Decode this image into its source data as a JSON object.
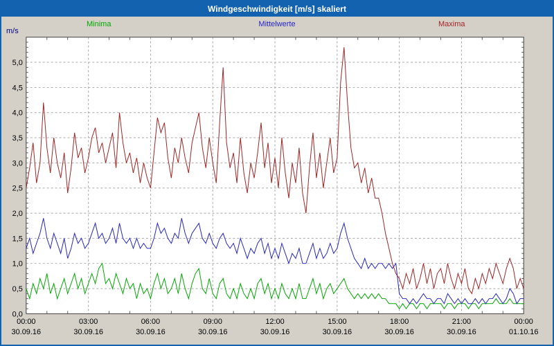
{
  "window": {
    "title": "Windgeschwindigkeit [m/s] skaliert"
  },
  "theme": {
    "titlebar": "#1262b0",
    "background": "#d4d0c8",
    "plot_background": "#ffffff",
    "grid": "#a8a8a8",
    "axis": "#404040",
    "tick": "#606060",
    "title_text": "#ffffff"
  },
  "chart_data": {
    "type": "line",
    "title": "Windgeschwindigkeit [m/s] skaliert",
    "ylabel": "m/s",
    "ylim": [
      0,
      5.5
    ],
    "grid": true,
    "legend_position": "top",
    "y_tick_values": [
      0,
      0.5,
      1.0,
      1.5,
      2.0,
      2.5,
      3.0,
      3.5,
      4.0,
      4.5,
      5.0
    ],
    "y_tick_labels": [
      "0,0",
      "0,5",
      "1,0",
      "1,5",
      "2,0",
      "2,5",
      "3,0",
      "3,5",
      "4,0",
      "4,5",
      "5,0"
    ],
    "x_ticks": [
      {
        "hour": 0,
        "time": "00:00",
        "date": "30.09.16"
      },
      {
        "hour": 3,
        "time": "03:00",
        "date": "30.09.16"
      },
      {
        "hour": 6,
        "time": "06:00",
        "date": "30.09.16"
      },
      {
        "hour": 9,
        "time": "09:00",
        "date": "30.09.16"
      },
      {
        "hour": 12,
        "time": "12:00",
        "date": "30.09.16"
      },
      {
        "hour": 15,
        "time": "15:00",
        "date": "30.09.16"
      },
      {
        "hour": 18,
        "time": "18:00",
        "date": "30.09.16"
      },
      {
        "hour": 21,
        "time": "21:00",
        "date": "30.09.16"
      },
      {
        "hour": 24,
        "time": "00:00",
        "date": "01.10.16"
      }
    ],
    "sample_interval_minutes": 10,
    "series": [
      {
        "name": "Minima",
        "color": "#00a800",
        "values": [
          0.5,
          0.3,
          0.6,
          0.4,
          0.7,
          0.5,
          0.8,
          0.4,
          0.6,
          0.3,
          0.5,
          0.7,
          0.4,
          0.6,
          0.8,
          0.5,
          0.7,
          0.4,
          0.6,
          0.8,
          0.6,
          0.9,
          1.0,
          0.6,
          0.7,
          0.5,
          0.8,
          0.6,
          0.4,
          0.7,
          0.5,
          0.6,
          0.3,
          0.6,
          0.4,
          0.5,
          0.3,
          0.6,
          0.8,
          0.5,
          0.7,
          0.4,
          0.5,
          0.7,
          0.4,
          0.8,
          0.5,
          0.3,
          0.6,
          0.8,
          0.9,
          0.5,
          0.4,
          0.7,
          0.4,
          0.3,
          0.6,
          0.7,
          0.4,
          0.3,
          0.5,
          0.3,
          0.6,
          0.4,
          0.3,
          0.5,
          0.3,
          0.6,
          0.7,
          0.4,
          0.6,
          0.3,
          0.5,
          0.3,
          0.6,
          0.4,
          0.3,
          0.5,
          0.3,
          0.6,
          0.3,
          0.3,
          0.5,
          0.7,
          0.4,
          0.6,
          0.3,
          0.5,
          0.6,
          0.4,
          0.5,
          0.6,
          0.7,
          0.5,
          0.4,
          0.3,
          0.4,
          0.3,
          0.4,
          0.3,
          0.4,
          0.3,
          0.4,
          0.3,
          0.3,
          0.2,
          0.2,
          0.2,
          0.1,
          0.2,
          0.1,
          0.2,
          0.2,
          0.1,
          0.2,
          0.2,
          0.1,
          0.2,
          0.2,
          0.2,
          0.2,
          0.1,
          0.2,
          0.2,
          0.1,
          0.2,
          0.2,
          0.2,
          0.1,
          0.2,
          0.2,
          0.1,
          0.2,
          0.2,
          0.2,
          0.2,
          0.3,
          0.2,
          0.2,
          0.2,
          0.3,
          0.2,
          0.2,
          0.2,
          0.2
        ]
      },
      {
        "name": "Mittelwerte",
        "color": "#2424c8",
        "values": [
          1.3,
          1.5,
          1.2,
          1.4,
          1.6,
          1.9,
          1.5,
          1.3,
          1.6,
          1.4,
          1.2,
          1.5,
          1.1,
          1.3,
          1.6,
          1.4,
          1.5,
          1.3,
          1.4,
          1.6,
          1.8,
          1.5,
          1.6,
          1.4,
          1.5,
          1.7,
          1.4,
          1.8,
          1.5,
          1.4,
          1.5,
          1.3,
          1.5,
          1.3,
          1.4,
          1.3,
          1.3,
          1.5,
          1.8,
          1.6,
          1.7,
          1.5,
          1.4,
          1.6,
          1.5,
          1.9,
          1.6,
          1.4,
          1.6,
          1.7,
          1.8,
          1.5,
          1.4,
          1.6,
          1.4,
          1.3,
          1.5,
          1.6,
          1.4,
          1.3,
          1.4,
          1.2,
          1.5,
          1.3,
          1.1,
          1.3,
          1.2,
          1.4,
          1.5,
          1.2,
          1.4,
          1.1,
          1.3,
          1.1,
          1.4,
          1.2,
          1.0,
          1.2,
          1.1,
          1.3,
          1.0,
          1.0,
          1.2,
          1.4,
          1.1,
          1.3,
          1.1,
          1.2,
          1.4,
          1.2,
          1.3,
          1.6,
          1.8,
          1.5,
          1.3,
          1.1,
          1.0,
          0.9,
          1.1,
          0.9,
          1.0,
          0.9,
          1.0,
          1.0,
          0.9,
          1.0,
          0.9,
          1.0,
          0.4,
          0.3,
          0.3,
          0.2,
          0.3,
          0.2,
          0.3,
          0.4,
          0.3,
          0.3,
          0.2,
          0.3,
          0.3,
          0.2,
          0.4,
          0.3,
          0.2,
          0.3,
          0.2,
          0.3,
          0.2,
          0.2,
          0.3,
          0.2,
          0.3,
          0.2,
          0.3,
          0.3,
          0.4,
          0.3,
          0.2,
          0.3,
          0.5,
          0.4,
          0.2,
          0.3,
          0.3
        ]
      },
      {
        "name": "Maxima",
        "color": "#a02424",
        "values": [
          2.5,
          2.9,
          3.4,
          2.6,
          3.0,
          4.2,
          3.3,
          2.8,
          3.5,
          3.0,
          2.7,
          3.2,
          2.4,
          2.9,
          3.6,
          3.1,
          3.3,
          2.8,
          3.1,
          3.5,
          3.7,
          3.2,
          3.4,
          3.0,
          3.3,
          3.6,
          2.9,
          4.0,
          3.4,
          3.0,
          3.2,
          2.8,
          3.1,
          2.6,
          3.0,
          2.7,
          2.5,
          3.2,
          3.9,
          3.6,
          3.8,
          3.1,
          2.7,
          3.3,
          3.0,
          3.5,
          3.1,
          2.8,
          3.4,
          3.7,
          4.0,
          3.3,
          2.9,
          3.5,
          3.0,
          2.6,
          3.8,
          4.9,
          3.4,
          2.9,
          3.2,
          2.6,
          3.5,
          2.8,
          2.4,
          3.0,
          2.7,
          3.2,
          3.8,
          2.9,
          3.4,
          2.6,
          3.1,
          2.5,
          3.5,
          2.8,
          2.3,
          3.0,
          2.6,
          3.3,
          2.4,
          2.0,
          2.9,
          3.6,
          2.7,
          3.2,
          2.5,
          3.0,
          3.5,
          2.8,
          3.1,
          4.6,
          5.3,
          4.2,
          3.3,
          2.9,
          3.0,
          2.6,
          2.9,
          2.4,
          2.7,
          2.3,
          2.3,
          2.0,
          1.6,
          1.3,
          1.0,
          0.8,
          0.7,
          0.5,
          0.8,
          0.6,
          0.9,
          0.5,
          0.7,
          1.0,
          0.6,
          0.9,
          0.5,
          0.8,
          0.9,
          0.6,
          1.0,
          0.7,
          0.5,
          0.8,
          0.6,
          0.9,
          0.5,
          0.4,
          0.7,
          0.5,
          0.8,
          0.6,
          0.9,
          0.7,
          1.0,
          0.8,
          0.6,
          0.9,
          1.1,
          0.9,
          0.5,
          0.7,
          0.5
        ]
      }
    ]
  }
}
